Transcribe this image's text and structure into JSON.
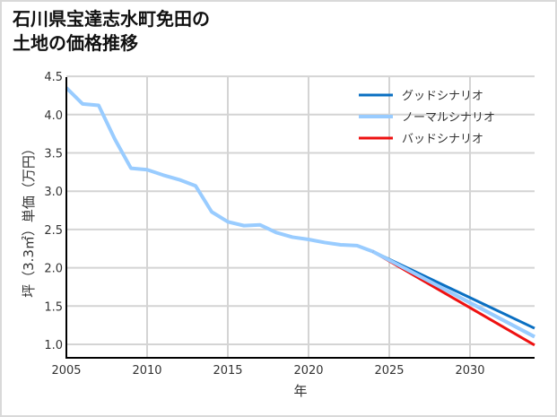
{
  "title_line1": "石川県宝達志水町免田の",
  "title_line2": "土地の価格推移",
  "chart_data": {
    "type": "line",
    "title": "石川県宝達志水町免田の土地の価格推移",
    "xlabel": "年",
    "ylabel": "坪（3.3㎡）単価（万円）",
    "xlim": [
      2005,
      2034
    ],
    "ylim": [
      0.8,
      4.5
    ],
    "xticks": [
      2005,
      2010,
      2015,
      2020,
      2025,
      2030
    ],
    "yticks": [
      "1.0",
      "1.5",
      "2.0",
      "2.5",
      "3.0",
      "3.5",
      "4.0",
      "4.5"
    ],
    "grid": true,
    "legend_position": "upper right",
    "series": [
      {
        "name": "グッドシナリオ",
        "color": "#0a6fc2",
        "x": [
          2024,
          2034
        ],
        "values": [
          2.21,
          1.21
        ]
      },
      {
        "name": "ノーマルシナリオ",
        "color": "#99ccff",
        "x": [
          2005,
          2006,
          2007,
          2008,
          2009,
          2010,
          2011,
          2012,
          2013,
          2014,
          2015,
          2016,
          2017,
          2018,
          2019,
          2020,
          2021,
          2022,
          2023,
          2024,
          2034
        ],
        "values": [
          4.35,
          4.14,
          4.12,
          3.68,
          3.3,
          3.28,
          3.21,
          3.15,
          3.07,
          2.73,
          2.6,
          2.55,
          2.56,
          2.46,
          2.4,
          2.37,
          2.33,
          2.3,
          2.29,
          2.21,
          1.1
        ]
      },
      {
        "name": "バッドシナリオ",
        "color": "#ee1111",
        "x": [
          2024,
          2034
        ],
        "values": [
          2.21,
          0.99
        ]
      }
    ]
  }
}
